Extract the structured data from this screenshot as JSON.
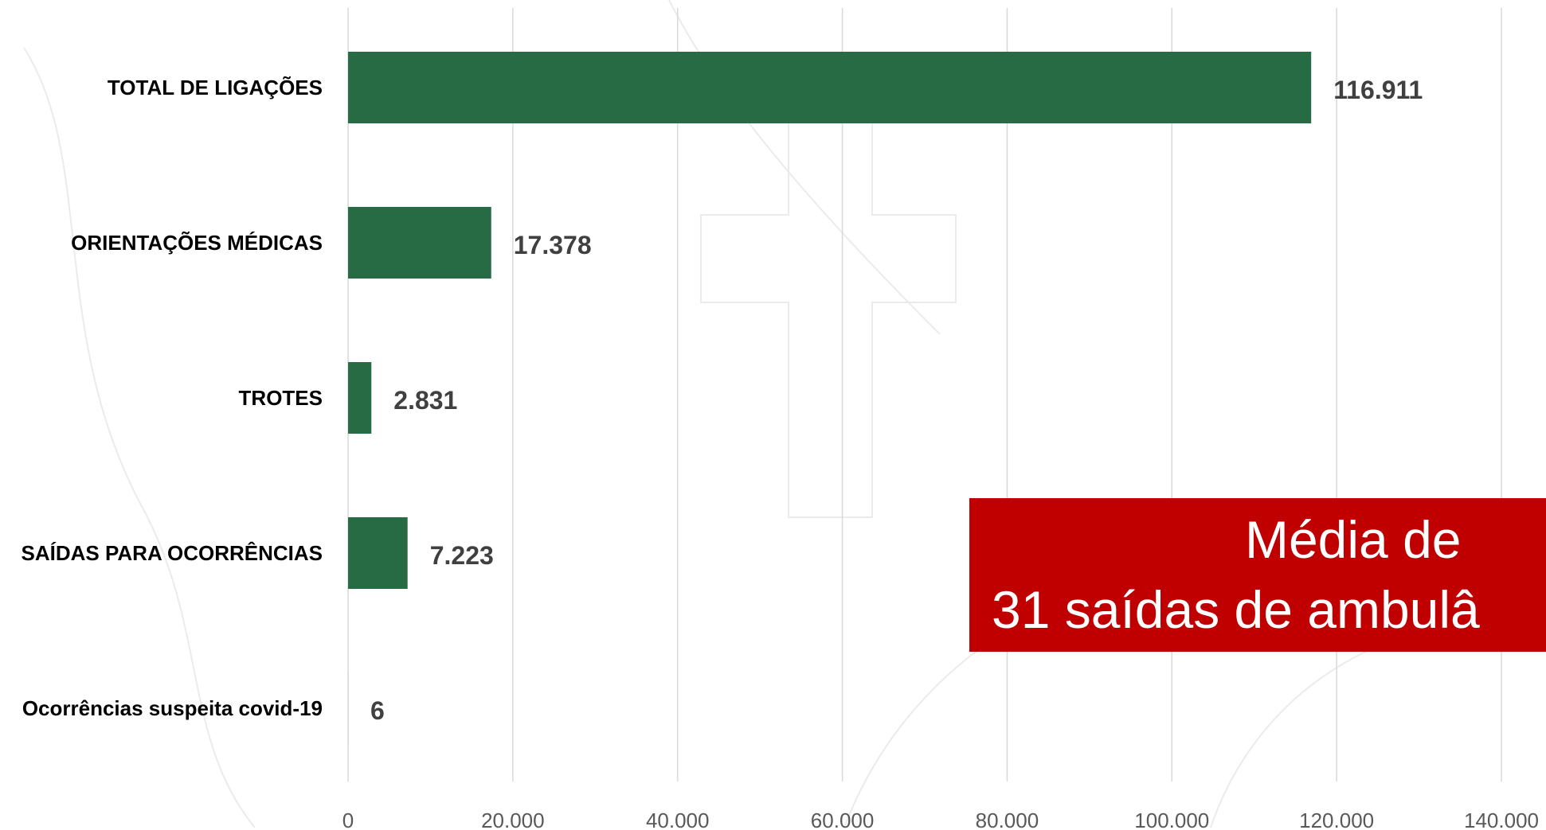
{
  "chart_data": {
    "type": "bar",
    "orientation": "horizontal",
    "categories": [
      "TOTAL DE LIGAÇÕES",
      "ORIENTAÇÕES MÉDICAS",
      "TROTES",
      "SAÍDAS PARA OCORRÊNCIAS",
      "Ocorrências suspeita covid-19"
    ],
    "values": [
      116911,
      17378,
      2831,
      7223,
      6
    ],
    "value_labels": [
      "116.911",
      "17.378",
      "2.831",
      "7.223",
      "6"
    ],
    "xlim": [
      0,
      140000
    ],
    "x_ticks": [
      0,
      20000,
      40000,
      60000,
      80000,
      100000,
      120000,
      140000
    ],
    "x_tick_labels": [
      "0",
      "20.000",
      "40.000",
      "60.000",
      "80.000",
      "100.000",
      "120.000",
      "140.000"
    ],
    "grid": "vertical",
    "legend": "none",
    "bar_color": "#276b45",
    "title": "",
    "xlabel": "",
    "ylabel": ""
  },
  "callout": {
    "line1": "Média de",
    "line2": "31 saídas de ambulâ",
    "color": "#c00000"
  }
}
